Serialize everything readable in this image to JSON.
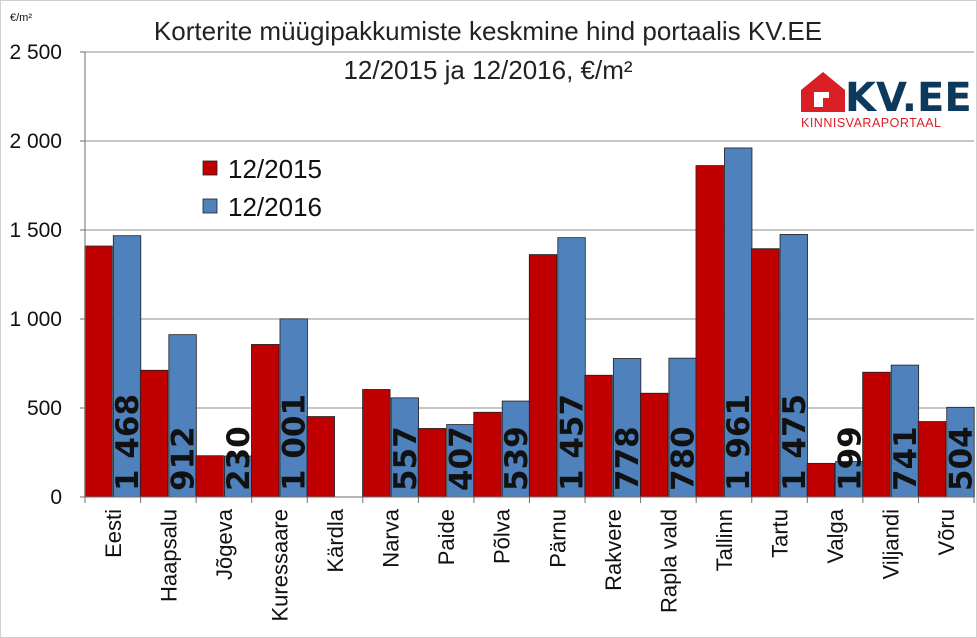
{
  "chart_data": {
    "type": "bar",
    "title": "Korterite müügipakkumiste keskmine hind portaalis KV.EE",
    "subtitle": "12/2015 ja 12/2016, €/m²",
    "ylabel": "€/m²",
    "xlabel": "",
    "ylim": [
      0,
      2500
    ],
    "yticks": [
      0,
      500,
      1000,
      1500,
      2000,
      2500
    ],
    "ytick_labels": [
      "0",
      "500",
      "1 000",
      "1 500",
      "2 000",
      "2 500"
    ],
    "grid": true,
    "legend_position": "upper-left",
    "categories": [
      "Eesti",
      "Haapsalu",
      "Jõgeva",
      "Kuressaare",
      "Kärdla",
      "Narva",
      "Paide",
      "Põlva",
      "Pärnu",
      "Rakvere",
      "Rapla vald",
      "Tallinn",
      "Tartu",
      "Valga",
      "Viljandi",
      "Võru"
    ],
    "series": [
      {
        "name": "12/2015",
        "color": "#c00000",
        "values": [
          1410,
          712,
          232,
          857,
          452,
          604,
          385,
          476,
          1362,
          684,
          583,
          1862,
          1395,
          189,
          701,
          424
        ]
      },
      {
        "name": "12/2016",
        "color": "#4f81bd",
        "values": [
          1468,
          912,
          230,
          1001,
          null,
          557,
          407,
          539,
          1457,
          778,
          780,
          1961,
          1475,
          199,
          741,
          504
        ],
        "data_labels": [
          "1 468",
          "912",
          "230",
          "1 001",
          "",
          "557",
          "407",
          "539",
          "1 457",
          "778",
          "780",
          "1 961",
          "1 475",
          "199",
          "741",
          "504"
        ]
      }
    ]
  },
  "logo": {
    "main": "KV.EE",
    "sub": "KINNISVARAPORTAAL",
    "colors": {
      "house": "#d91e26",
      "text": "#0d3a5c",
      "sub": "#d91e26"
    }
  }
}
